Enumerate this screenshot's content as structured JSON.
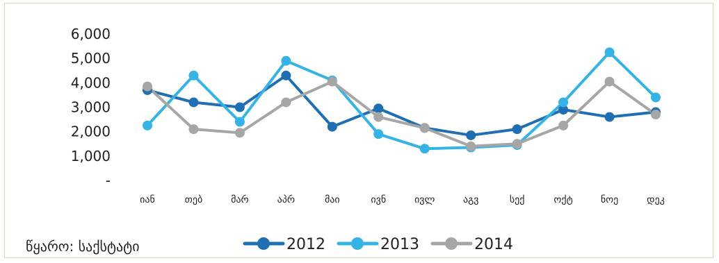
{
  "chart_data": {
    "type": "line",
    "title": "",
    "xlabel": "",
    "ylabel": "",
    "categories": [
      "იან",
      "თებ",
      "მარ",
      "აპრ",
      "მაი",
      "ივნ",
      "ივლ",
      "აგვ",
      "სექ",
      "ოქტ",
      "ნოე",
      "დეკ"
    ],
    "y_tick_labels": [
      "-",
      "1,000",
      "2,000",
      "3,000",
      "4,000",
      "5,000",
      "6,000"
    ],
    "y_tick_values": [
      0,
      1000,
      2000,
      3000,
      4000,
      5000,
      6000
    ],
    "ylim": [
      0,
      6000
    ],
    "grid": false,
    "legend_position": "bottom",
    "series": [
      {
        "name": "2012",
        "color": "#1f6fb4",
        "values": [
          3700,
          3200,
          3000,
          4300,
          2200,
          2950,
          2150,
          1850,
          2100,
          2900,
          2600,
          2800
        ]
      },
      {
        "name": "2013",
        "color": "#33b3e6",
        "values": [
          2250,
          4300,
          2400,
          4900,
          4100,
          1900,
          1300,
          1350,
          1450,
          3200,
          5250,
          3400
        ]
      },
      {
        "name": "2014",
        "color": "#a6a6a6",
        "values": [
          3850,
          2100,
          1950,
          3200,
          4050,
          2600,
          2150,
          1400,
          1500,
          2250,
          4050,
          2700
        ]
      }
    ]
  },
  "source": "წყარო: საქსტატი"
}
